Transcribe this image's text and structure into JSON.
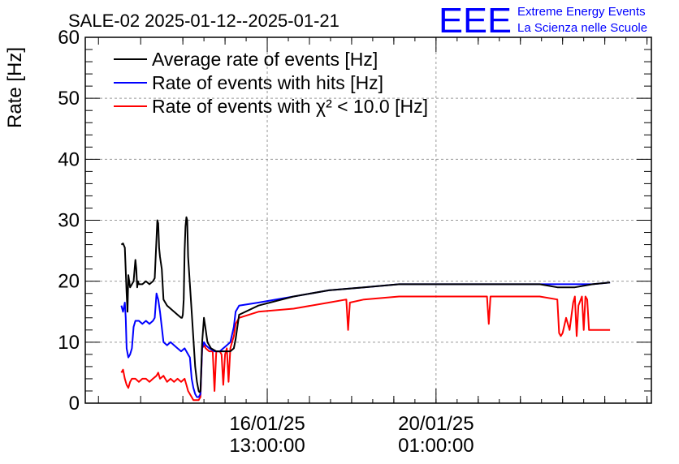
{
  "chart_data": {
    "type": "line",
    "title": "SALE-02 2025-01-12--2025-01-21",
    "ylabel": "Rate [Hz]",
    "xlabel": "",
    "ylim": [
      0,
      60
    ],
    "yticks": [
      0,
      10,
      20,
      30,
      40,
      50,
      60
    ],
    "ytick_labels": [
      "0",
      "10",
      "20",
      "30",
      "40",
      "50",
      "60"
    ],
    "x_unit": "hours since 2025-01-12 00:00",
    "xlim": [
      -18.5,
      303.5
    ],
    "xticks": [
      {
        "t": 85,
        "date": "16/01/25",
        "time": "13:00:00"
      },
      {
        "t": 181,
        "date": "20/01/25",
        "time": "01:00:00"
      }
    ],
    "grid": true,
    "legend_position": "top-left",
    "series": [
      {
        "name": "Average rate of events [Hz]",
        "color": "#000000",
        "x": [
          2.0,
          3.0,
          4.0,
          5.0,
          5.5,
          6.0,
          7.0,
          9.0,
          10.0,
          10.5,
          11.0,
          11.5,
          12.0,
          14.0,
          16.0,
          18.0,
          20.0,
          21.0,
          22.0,
          22.5,
          23.0,
          23.5,
          24.0,
          25.0,
          26.0,
          28.0,
          30.0,
          32.0,
          34.0,
          36.0,
          36.5,
          37.0,
          37.5,
          38.0,
          38.5,
          39.0,
          39.5,
          40.0,
          42.0,
          44.0,
          45.0,
          46.0,
          46.5,
          47.0,
          48.0,
          49.0,
          50.0,
          51.0,
          52.0,
          53.0,
          56.0,
          60.0,
          62.0,
          64.0,
          66.0,
          67.0,
          69.0,
          80.0,
          100.0,
          120.0,
          140.0,
          160.0,
          180.0,
          200.0,
          220.0,
          240.0,
          250.0,
          260.0,
          270.0,
          280.0
        ],
        "values": [
          26.0,
          26.2,
          25.5,
          18.0,
          15.0,
          21.0,
          19.0,
          20.0,
          23.5,
          22.0,
          19.0,
          20.0,
          19.5,
          19.5,
          20.0,
          19.5,
          20.0,
          20.5,
          27.0,
          30.0,
          29.5,
          25.5,
          24.0,
          22.0,
          17.0,
          16.0,
          15.5,
          15.0,
          14.5,
          14.0,
          14.0,
          14.5,
          17.0,
          25.0,
          29.0,
          30.5,
          30.0,
          24.0,
          15.0,
          6.0,
          3.5,
          2.0,
          1.8,
          2.0,
          10.0,
          14.0,
          12.0,
          10.0,
          9.5,
          9.0,
          8.5,
          8.5,
          8.5,
          8.5,
          9.0,
          10.5,
          14.5,
          16.0,
          17.5,
          18.5,
          19.0,
          19.5,
          19.5,
          19.5,
          19.5,
          19.5,
          19.0,
          19.0,
          19.5,
          19.8
        ]
      },
      {
        "name": "Rate of events with hits [Hz]",
        "color": "#0000ff",
        "x": [
          2.0,
          3.0,
          4.0,
          4.5,
          5.0,
          6.0,
          7.0,
          8.0,
          9.0,
          10.0,
          12.0,
          14.0,
          16.0,
          18.0,
          20.0,
          21.0,
          22.0,
          22.5,
          23.0,
          24.0,
          26.0,
          28.0,
          30.0,
          32.0,
          34.0,
          36.0,
          38.0,
          39.0,
          40.0,
          41.0,
          42.0,
          43.0,
          44.0,
          45.0,
          46.0,
          47.0,
          48.0,
          49.0,
          50.0,
          52.0,
          55.0,
          58.0,
          60.0,
          62.0,
          64.0,
          66.0,
          67.0,
          69.0,
          80.0,
          100.0,
          120.0,
          140.0,
          160.0,
          180.0,
          200.0,
          220.0,
          240.0,
          250.0,
          260.0,
          270.0,
          280.0
        ],
        "values": [
          16.0,
          15.0,
          16.5,
          14.0,
          9.0,
          7.5,
          8.0,
          9.0,
          12.5,
          13.5,
          13.5,
          13.0,
          13.5,
          13.0,
          13.5,
          14.0,
          18.0,
          17.5,
          17.0,
          15.0,
          10.0,
          9.5,
          10.0,
          9.5,
          9.0,
          8.5,
          9.0,
          8.5,
          8.0,
          7.5,
          4.0,
          2.5,
          1.5,
          1.0,
          1.0,
          1.5,
          9.0,
          10.0,
          9.5,
          9.0,
          8.5,
          8.5,
          9.0,
          9.5,
          10.0,
          12.5,
          15.0,
          16.0,
          16.5,
          17.5,
          18.5,
          19.0,
          19.5,
          19.5,
          19.5,
          19.5,
          19.5,
          19.5,
          19.5,
          19.5,
          19.8
        ]
      },
      {
        "name": "Rate of events with χ² < 10.0 [Hz]",
        "color": "#ff0000",
        "x": [
          2.0,
          3.0,
          4.0,
          5.0,
          6.0,
          7.0,
          8.0,
          10.0,
          12.0,
          14.0,
          16.0,
          18.0,
          20.0,
          22.0,
          23.0,
          24.0,
          26.0,
          28.0,
          30.0,
          32.0,
          34.0,
          36.0,
          38.0,
          39.0,
          40.0,
          41.0,
          42.0,
          43.0,
          44.0,
          45.0,
          46.0,
          47.0,
          48.0,
          49.0,
          50.0,
          52.0,
          54.0,
          55.0,
          56.0,
          57.0,
          58.0,
          59.0,
          60.0,
          61.0,
          62.0,
          63.0,
          64.0,
          65.0,
          66.0,
          67.0,
          69.0,
          80.0,
          100.0,
          120.0,
          130.0,
          131.0,
          132.0,
          140.0,
          160.0,
          180.0,
          200.0,
          210.0,
          211.0,
          212.0,
          220.0,
          240.0,
          250.0,
          251.0,
          252.0,
          253.0,
          255.0,
          257.0,
          259.0,
          260.0,
          261.0,
          262.0,
          264.0,
          265.0,
          266.0,
          267.0,
          268.0,
          270.0,
          272.0,
          280.0
        ],
        "values": [
          5.0,
          5.5,
          4.0,
          3.0,
          2.5,
          3.5,
          4.0,
          4.0,
          3.5,
          4.0,
          4.0,
          3.5,
          4.0,
          4.5,
          5.0,
          4.0,
          4.5,
          3.5,
          4.0,
          3.5,
          4.0,
          3.5,
          4.0,
          3.0,
          2.0,
          1.5,
          1.0,
          0.5,
          0.5,
          0.5,
          0.5,
          1.0,
          9.0,
          9.5,
          9.0,
          8.5,
          8.5,
          2.0,
          8.5,
          8.5,
          8.5,
          8.0,
          3.0,
          8.0,
          9.0,
          3.5,
          9.0,
          10.0,
          11.0,
          13.0,
          14.0,
          15.0,
          15.5,
          16.5,
          17.0,
          12.0,
          16.5,
          17.0,
          17.5,
          17.5,
          17.5,
          17.5,
          13.0,
          17.5,
          17.5,
          17.5,
          17.0,
          11.5,
          11.0,
          11.5,
          14.0,
          12.0,
          16.5,
          17.5,
          11.0,
          16.0,
          17.5,
          12.0,
          17.5,
          17.0,
          12.0,
          12.0,
          12.0,
          12.0
        ]
      }
    ]
  },
  "logo": {
    "letters": "EEE",
    "line1": "Extreme Energy Events",
    "line2": "La Scienza nelle Scuole",
    "color": "#0000ff"
  }
}
